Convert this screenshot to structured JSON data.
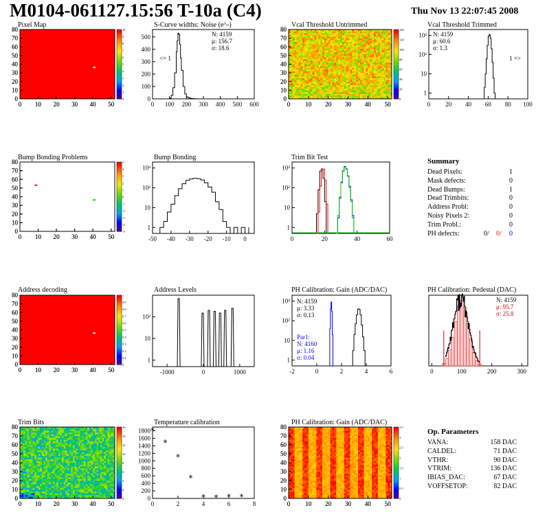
{
  "header": {
    "title": "M0104-061127.15:56 T-10a (C4)",
    "timestamp": "Thu Nov 13 22:07:45 2008"
  },
  "colors": {
    "red": "#ff0000",
    "blue": "#0000ff",
    "green": "#00cc00",
    "black": "#000000"
  },
  "chart_data": [
    {
      "id": "pixel-map",
      "type": "heatmap",
      "title": "Pixel Map",
      "xlim": [
        0,
        52
      ],
      "ylim": [
        0,
        80
      ],
      "xticks": [
        0,
        10,
        20,
        30,
        40,
        50
      ],
      "yticks": [
        0,
        10,
        20,
        30,
        40,
        50,
        60,
        70,
        80
      ],
      "zlim": [
        0,
        10
      ],
      "zticks": [
        0,
        1,
        2,
        3,
        4,
        5,
        6,
        7,
        8,
        9,
        10
      ],
      "fill_value": 10,
      "outliers": [
        {
          "x": 40,
          "y": 36,
          "value": 0
        }
      ]
    },
    {
      "id": "scurve-noise",
      "type": "line",
      "title": "S-Curve widths: Noise (e^-)",
      "xlim": [
        0,
        600
      ],
      "ylim": [
        0,
        560
      ],
      "xticks": [
        0,
        100,
        200,
        300,
        400,
        500,
        600
      ],
      "yticks": [
        0,
        100,
        200,
        300,
        400,
        500
      ],
      "stats": [
        "N: 4159",
        "μ: 156.7",
        "σ: 18.6"
      ],
      "annotation": "<= 1",
      "x": [
        90,
        100,
        110,
        120,
        130,
        140,
        145,
        150,
        155,
        160,
        165,
        170,
        180,
        190,
        200,
        210,
        220,
        230,
        240,
        250,
        260,
        270,
        280
      ],
      "values": [
        0,
        5,
        30,
        90,
        210,
        380,
        470,
        530,
        520,
        440,
        330,
        230,
        100,
        40,
        15,
        8,
        5,
        3,
        2,
        1,
        1,
        0,
        0
      ]
    },
    {
      "id": "vcal-untrimmed",
      "type": "heatmap",
      "title": "Vcal Threshold Untrimmed",
      "xlim": [
        0,
        52
      ],
      "ylim": [
        0,
        80
      ],
      "xticks": [
        0,
        10,
        20,
        30,
        40,
        50
      ],
      "yticks": [
        0,
        10,
        20,
        30,
        40,
        50,
        60,
        70,
        80
      ],
      "zlim": [
        0,
        140
      ],
      "zticks": [
        0,
        20,
        40,
        60,
        80,
        100,
        120,
        140
      ]
    },
    {
      "id": "vcal-trimmed",
      "type": "line",
      "title": "Vcal Threshold Trimmed",
      "log_y": true,
      "xlim": [
        0,
        100
      ],
      "ylim": [
        0.5,
        2000
      ],
      "xticks": [
        0,
        20,
        40,
        60,
        80,
        100
      ],
      "yticks": [
        1,
        10,
        100,
        1000
      ],
      "ytick_labels": [
        "1",
        "10",
        "10²",
        "10³"
      ],
      "stats": [
        "N: 4159",
        "μ: 60.6",
        "σ: 1.3"
      ],
      "annotation": "1 =>",
      "x": [
        55,
        56,
        57,
        58,
        59,
        60,
        61,
        62,
        63,
        64,
        65,
        66,
        67
      ],
      "values": [
        0,
        2,
        10,
        60,
        300,
        900,
        1100,
        700,
        200,
        40,
        6,
        1,
        0
      ]
    },
    {
      "id": "bump-problems",
      "type": "heatmap",
      "title": "Bump Bonding Problems",
      "xlim": [
        0,
        52
      ],
      "ylim": [
        0,
        80
      ],
      "xticks": [
        0,
        10,
        20,
        30,
        40,
        50
      ],
      "yticks": [
        0,
        10,
        20,
        30,
        40,
        50,
        60,
        70,
        80
      ],
      "zlim": [
        -5,
        5
      ],
      "zticks": [
        -5,
        -4,
        -3,
        -2,
        -1,
        0,
        1,
        2,
        3,
        4,
        5
      ],
      "fill_value": null,
      "outliers": [
        {
          "x": 8,
          "y": 53,
          "value": 5
        },
        {
          "x": 40,
          "y": 36,
          "value": 2
        }
      ]
    },
    {
      "id": "bump-bonding",
      "type": "line",
      "title": "Bump Bonding",
      "log_y": true,
      "xlim": [
        -50,
        5
      ],
      "ylim": [
        0.5,
        2000
      ],
      "xticks": [
        -50,
        -40,
        -30,
        -20,
        -10,
        0
      ],
      "yticks": [
        1,
        10,
        100,
        1000
      ],
      "ytick_labels": [
        "1",
        "10",
        "10²",
        "10³"
      ],
      "x": [
        -48,
        -46,
        -44,
        -42,
        -40,
        -38,
        -36,
        -34,
        -32,
        -30,
        -28,
        -26,
        -24,
        -22,
        -20,
        -18,
        -16,
        -14,
        -12,
        -10,
        -8,
        -6,
        -4,
        -2,
        0,
        2
      ],
      "values": [
        0,
        1,
        2,
        6,
        15,
        40,
        90,
        160,
        240,
        280,
        300,
        290,
        250,
        180,
        110,
        60,
        20,
        8,
        2,
        1,
        0,
        1,
        0,
        1,
        0,
        1
      ]
    },
    {
      "id": "trim-bit-test",
      "type": "line",
      "title": "Trim Bit Test",
      "log_y": true,
      "xlim": [
        0,
        60
      ],
      "ylim": [
        0.5,
        2000
      ],
      "xticks": [
        0,
        20,
        40,
        60
      ],
      "yticks": [
        1,
        10,
        100,
        1000
      ],
      "ytick_labels": [
        "1",
        "10",
        "10²",
        "10³"
      ],
      "series": [
        {
          "color": "#000000",
          "x": [
            14,
            15,
            16,
            17,
            18,
            19,
            20,
            21
          ],
          "values": [
            0,
            5,
            80,
            700,
            900,
            300,
            20,
            0
          ]
        },
        {
          "color": "#ff0000",
          "x": [
            15,
            16,
            17,
            18,
            19,
            20,
            21,
            22
          ],
          "values": [
            0,
            6,
            120,
            750,
            880,
            250,
            15,
            0
          ]
        },
        {
          "color": "#0000ff",
          "x": [
            27,
            28,
            29,
            30,
            31,
            32,
            33,
            34,
            35,
            36,
            37,
            38
          ],
          "values": [
            0,
            3,
            30,
            180,
            700,
            1200,
            900,
            400,
            120,
            25,
            4,
            0
          ]
        },
        {
          "color": "#00cc00",
          "x": [
            27,
            28,
            29,
            30,
            31,
            32,
            33,
            34,
            35,
            36,
            37,
            38
          ],
          "values": [
            0,
            4,
            35,
            200,
            750,
            1100,
            850,
            380,
            100,
            20,
            3,
            0
          ]
        }
      ]
    },
    {
      "id": "summary",
      "type": "table",
      "title": "Summary",
      "rows": [
        {
          "label": "Dead Pixels:",
          "value": "1"
        },
        {
          "label": "Mask defects:",
          "value": "0"
        },
        {
          "label": "Dead Bumps:",
          "value": "1"
        },
        {
          "label": "Dead Trimbits:",
          "value": "0"
        },
        {
          "label": "Address Probl:",
          "value": "0"
        },
        {
          "label": "Noisy Pixels 2:",
          "value": "0"
        },
        {
          "label": "Trim Probl.:",
          "value": "0"
        }
      ],
      "ph_defects": {
        "label": "PH defects:",
        "values": [
          {
            "text": "0/",
            "color": "#000000"
          },
          {
            "text": "0/",
            "color": "#ff0000"
          },
          {
            "text": "0",
            "color": "#0000ff"
          }
        ]
      }
    },
    {
      "id": "address-decoding",
      "type": "heatmap",
      "title": "Address decoding",
      "xlim": [
        0,
        52
      ],
      "ylim": [
        0,
        80
      ],
      "xticks": [
        0,
        10,
        20,
        30,
        40,
        50
      ],
      "yticks": [
        0,
        10,
        20,
        30,
        40,
        50,
        60,
        70,
        80
      ],
      "zlim": [
        0,
        1
      ],
      "zticks": [
        0,
        0.1,
        0.2,
        0.3,
        0.4,
        0.5,
        0.6,
        0.7,
        0.8,
        0.9,
        1
      ],
      "fill_value": 1,
      "outliers": [
        {
          "x": 40,
          "y": 36,
          "value": 0
        }
      ]
    },
    {
      "id": "address-levels",
      "type": "line",
      "title": "Address Levels",
      "log_y": true,
      "xlim": [
        -1400,
        1400
      ],
      "ylim": [
        0.5,
        1000
      ],
      "xticks": [
        -1000,
        0,
        1000
      ],
      "yticks": [
        1,
        10,
        100
      ],
      "ytick_labels": [
        "1",
        "10",
        "10²"
      ],
      "peaks": [
        {
          "x": -680,
          "h": 700
        },
        {
          "x": -20,
          "h": 150
        },
        {
          "x": 150,
          "h": 200
        },
        {
          "x": 310,
          "h": 180
        },
        {
          "x": 460,
          "h": 150
        },
        {
          "x": 600,
          "h": 200
        },
        {
          "x": 800,
          "h": 250
        }
      ]
    },
    {
      "id": "ph-gain",
      "type": "line",
      "title": "PH Calibration: Gain (ADC/DAC)",
      "log_y": true,
      "xlim": [
        -2,
        6
      ],
      "ylim": [
        0.5,
        2000
      ],
      "xticks": [
        -2,
        0,
        2,
        4,
        6
      ],
      "yticks": [
        1,
        10,
        100,
        1000
      ],
      "ytick_labels": [
        "1",
        "10",
        "10²",
        "10³"
      ],
      "stats": [
        "N: 4159",
        "μ: 3.33",
        "σ: 0.13"
      ],
      "par_stats": [
        "Par1:",
        "N: 4160",
        "μ: 1.16",
        "σ: 0.04"
      ],
      "series": [
        {
          "color": "#000000",
          "x": [
            2.8,
            2.9,
            3.0,
            3.1,
            3.2,
            3.3,
            3.4,
            3.5,
            3.6,
            3.7,
            3.8,
            3.9
          ],
          "values": [
            0,
            3,
            20,
            70,
            200,
            400,
            380,
            200,
            60,
            15,
            3,
            0
          ]
        },
        {
          "color": "#0000ff",
          "x": [
            1.0,
            1.05,
            1.1,
            1.15,
            1.2,
            1.25,
            1.3
          ],
          "values": [
            0,
            40,
            400,
            900,
            300,
            20,
            0
          ]
        }
      ]
    },
    {
      "id": "ph-pedestal",
      "type": "bar",
      "title": "PH Calibration: Pedestal (DAC)",
      "xlim": [
        -10,
        320
      ],
      "ylim": [
        0,
        80
      ],
      "xticks": [
        0,
        100,
        200,
        300
      ],
      "yticks": [],
      "stats": [
        "N: 4159",
        "μ: 95.7",
        "σ: 25.8"
      ],
      "x": [
        40,
        50,
        60,
        70,
        80,
        90,
        100,
        110,
        120,
        130,
        140,
        150,
        160
      ],
      "values": [
        3,
        8,
        18,
        32,
        50,
        68,
        74,
        66,
        48,
        30,
        15,
        6,
        2
      ]
    },
    {
      "id": "trim-bits",
      "type": "heatmap",
      "title": "Trim Bits",
      "xlim": [
        0,
        52
      ],
      "ylim": [
        0,
        80
      ],
      "xticks": [
        0,
        10,
        20,
        30,
        40,
        50
      ],
      "yticks": [
        0,
        10,
        20,
        30,
        40,
        50,
        60,
        70,
        80
      ],
      "zlim": [
        0,
        16
      ],
      "zticks": [
        0,
        2,
        4,
        6,
        8,
        10,
        12,
        14,
        16
      ]
    },
    {
      "id": "temperature-calibration",
      "type": "scatter",
      "title": "Temperature calibration",
      "xlim": [
        0,
        8
      ],
      "ylim": [
        0,
        1900
      ],
      "xticks": [
        0,
        2,
        4,
        6,
        8
      ],
      "yticks": [
        0,
        200,
        400,
        600,
        800,
        1000,
        1200,
        1400,
        1600,
        1800
      ],
      "x": [
        0,
        1,
        2,
        3,
        4,
        5,
        6,
        7
      ],
      "values": [
        1800,
        1480,
        1100,
        540,
        30,
        20,
        40,
        40
      ]
    },
    {
      "id": "ph-gain-map",
      "type": "heatmap",
      "title": "PH Calibration: Gain (ADC/DAC)",
      "xlim": [
        0,
        52
      ],
      "ylim": [
        0,
        80
      ],
      "xticks": [
        0,
        10,
        20,
        30,
        40,
        50
      ],
      "yticks": [
        0,
        10,
        20,
        30,
        40,
        50,
        60,
        70,
        80
      ],
      "zlim": [
        0,
        3.5
      ],
      "zticks": [
        0,
        0.5,
        1,
        1.5,
        2,
        2.5,
        3,
        3.5
      ]
    },
    {
      "id": "op-parameters",
      "type": "table",
      "title": "Op. Parameters",
      "rows": [
        {
          "label": "VANA:",
          "value": "158 DAC"
        },
        {
          "label": "CALDEL:",
          "value": "71 DAC"
        },
        {
          "label": "VTHR:",
          "value": "90 DAC"
        },
        {
          "label": "VTRIM:",
          "value": "136 DAC"
        },
        {
          "label": "IBIAS_DAC:",
          "value": "67 DAC"
        },
        {
          "label": "VOFFSETOP:",
          "value": "82 DAC"
        }
      ]
    }
  ]
}
